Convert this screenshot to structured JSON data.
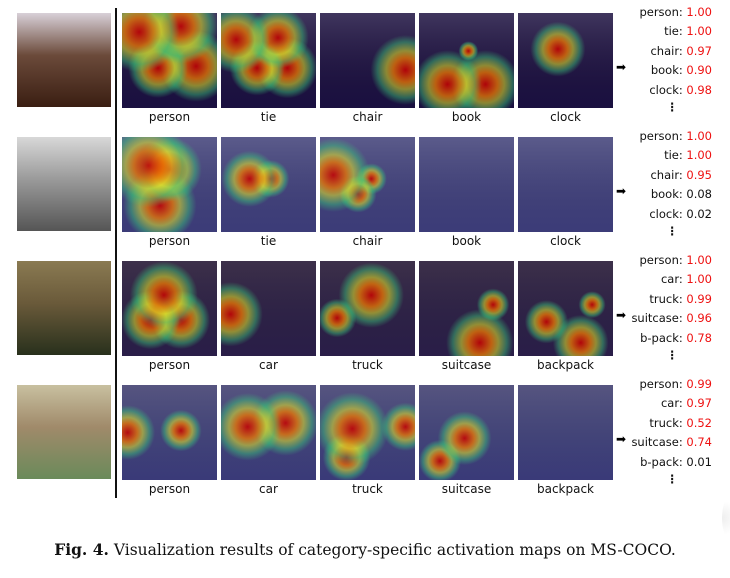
{
  "figure": {
    "caption_prefix": "Fig. 4.",
    "caption_text": " Visualization results of category-specific activation maps on MS-COCO.",
    "arrow_glyph": "➡",
    "continuation_glyph": "⋮"
  },
  "rows": [
    {
      "scene": "meeting-signing",
      "orig_colors": [
        "#3a1e12",
        "#6b4a3a",
        "#d8d0d8"
      ],
      "tint": "#1a1040",
      "panels": [
        {
          "label": "person",
          "blobs": [
            [
              18,
              20,
              22,
              30
            ],
            [
              62,
              14,
              22,
              30
            ],
            [
              38,
              58,
              22,
              30
            ],
            [
              78,
              56,
              24,
              30
            ]
          ]
        },
        {
          "label": "tie",
          "blobs": [
            [
              16,
              28,
              20,
              24
            ],
            [
              60,
              26,
              22,
              24
            ],
            [
              38,
              58,
              22,
              24
            ],
            [
              70,
              58,
              22,
              26
            ]
          ]
        },
        {
          "label": "chair",
          "blobs": [
            [
              90,
              60,
              20,
              28
            ]
          ]
        },
        {
          "label": "book",
          "blobs": [
            [
              30,
              75,
              26,
              18
            ],
            [
              70,
              75,
              26,
              18
            ],
            [
              52,
              40,
              8,
              10
            ]
          ]
        },
        {
          "label": "clock",
          "blobs": [
            [
              42,
              38,
              22,
              24
            ]
          ]
        }
      ],
      "scores": [
        {
          "name": "person:",
          "value": "1.00",
          "high": true
        },
        {
          "name": "tie:",
          "value": "1.00",
          "high": true
        },
        {
          "name": "chair:",
          "value": "0.97",
          "high": true
        },
        {
          "name": "book:",
          "value": "0.90",
          "high": true
        },
        {
          "name": "clock:",
          "value": "0.98",
          "high": true
        }
      ]
    },
    {
      "scene": "vintage-bw-photo",
      "orig_colors": [
        "#555555",
        "#9a9a9a",
        "#d8d8d8"
      ],
      "tint": "#3c3c78",
      "panels": [
        {
          "label": "person",
          "blobs": [
            [
              28,
              30,
              26,
              36
            ],
            [
              50,
              34,
              24,
              34
            ],
            [
              40,
              72,
              30,
              22
            ]
          ]
        },
        {
          "label": "tie",
          "blobs": [
            [
              30,
              44,
              24,
              18
            ],
            [
              52,
              44,
              18,
              16
            ]
          ]
        },
        {
          "label": "chair",
          "blobs": [
            [
              14,
              40,
              20,
              34
            ],
            [
              40,
              60,
              16,
              14
            ],
            [
              54,
              44,
              14,
              14
            ]
          ]
        },
        {
          "label": "book",
          "blobs": []
        },
        {
          "label": "clock",
          "blobs": []
        }
      ],
      "scores": [
        {
          "name": "person:",
          "value": "1.00",
          "high": true
        },
        {
          "name": "tie:",
          "value": "1.00",
          "high": true
        },
        {
          "name": "chair:",
          "value": "0.95",
          "high": true
        },
        {
          "name": "book:",
          "value": "0.08",
          "high": false
        },
        {
          "name": "clock:",
          "value": "0.02",
          "high": false
        }
      ]
    },
    {
      "scene": "truck-park",
      "orig_colors": [
        "#28301c",
        "#6a5a3a",
        "#8a7a52"
      ],
      "tint": "#2a1e48",
      "panels": [
        {
          "label": "person",
          "blobs": [
            [
              44,
              36,
              28,
              28
            ],
            [
              30,
              62,
              20,
              26
            ],
            [
              62,
              62,
              22,
              26
            ]
          ]
        },
        {
          "label": "car",
          "blobs": [
            [
              10,
              56,
              22,
              20
            ]
          ]
        },
        {
          "label": "truck",
          "blobs": [
            [
              54,
              36,
              28,
              26
            ],
            [
              18,
              60,
              14,
              12
            ]
          ]
        },
        {
          "label": "suitcase",
          "blobs": [
            [
              64,
              86,
              22,
              22
            ],
            [
              78,
              46,
              12,
              12
            ]
          ]
        },
        {
          "label": "backpack",
          "blobs": [
            [
              30,
              64,
              16,
              16
            ],
            [
              66,
              86,
              18,
              18
            ],
            [
              78,
              46,
              10,
              10
            ]
          ]
        }
      ],
      "scores": [
        {
          "name": "person:",
          "value": "1.00",
          "high": true
        },
        {
          "name": "car:",
          "value": "1.00",
          "high": true
        },
        {
          "name": "truck:",
          "value": "0.99",
          "high": true
        },
        {
          "name": "suitcase:",
          "value": "0.96",
          "high": true
        },
        {
          "name": "b-pack:",
          "value": "0.78",
          "high": true
        }
      ]
    },
    {
      "scene": "van-rear-luggage",
      "orig_colors": [
        "#6a8a5a",
        "#a08a6a",
        "#c8c0a0"
      ],
      "tint": "#3a3a78",
      "panels": [
        {
          "label": "person",
          "blobs": [
            [
              6,
              50,
              16,
              22
            ],
            [
              62,
              48,
              16,
              22
            ]
          ]
        },
        {
          "label": "car",
          "blobs": [
            [
              28,
              44,
              24,
              30
            ],
            [
              68,
              40,
              24,
              28
            ]
          ]
        },
        {
          "label": "truck",
          "blobs": [
            [
              34,
              46,
              34,
              22
            ],
            [
              90,
              44,
              16,
              16
            ],
            [
              28,
              76,
              14,
              20
            ]
          ]
        },
        {
          "label": "suitcase",
          "blobs": [
            [
              48,
              56,
              26,
              22
            ],
            [
              22,
              80,
              10,
              20
            ]
          ]
        },
        {
          "label": "backpack",
          "blobs": []
        }
      ],
      "scores": [
        {
          "name": "person:",
          "value": "0.99",
          "high": true
        },
        {
          "name": "car:",
          "value": "0.97",
          "high": true
        },
        {
          "name": "truck:",
          "value": "0.52",
          "high": true
        },
        {
          "name": "suitcase:",
          "value": "0.74",
          "high": true
        },
        {
          "name": "b-pack:",
          "value": "0.01",
          "high": false
        }
      ]
    }
  ]
}
